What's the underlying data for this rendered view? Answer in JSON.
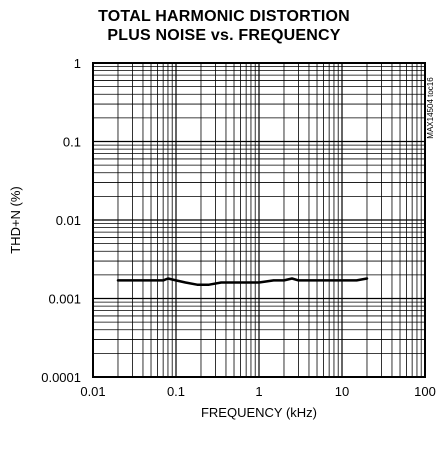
{
  "chart_data": {
    "type": "line",
    "title_lines": [
      "TOTAL HARMONIC DISTORTION",
      "PLUS NOISE vs. FREQUENCY"
    ],
    "xlabel": "FREQUENCY (kHz)",
    "ylabel": "THD+N (%)",
    "x_scale": "log",
    "y_scale": "log",
    "xlim": [
      0.01,
      100
    ],
    "ylim": [
      0.0001,
      1
    ],
    "x_ticks": [
      "0.01",
      "0.1",
      "1",
      "10",
      "100"
    ],
    "y_ticks": [
      "1",
      "0.1",
      "0.01",
      "0.001",
      "0.0001"
    ],
    "grid": true,
    "annotation": "MAX14504 toc16",
    "series": [
      {
        "x": [
          0.02,
          0.03,
          0.05,
          0.07,
          0.08,
          0.1,
          0.13,
          0.18,
          0.25,
          0.35,
          0.5,
          0.7,
          1,
          1.5,
          2,
          2.5,
          3,
          4,
          5,
          7,
          10,
          15,
          20
        ],
        "y": [
          0.0017,
          0.0017,
          0.0017,
          0.0017,
          0.0018,
          0.0017,
          0.0016,
          0.0015,
          0.0015,
          0.0016,
          0.0016,
          0.0016,
          0.0016,
          0.0017,
          0.0017,
          0.0018,
          0.0017,
          0.0017,
          0.0017,
          0.0017,
          0.0017,
          0.0017,
          0.0018
        ]
      }
    ]
  }
}
